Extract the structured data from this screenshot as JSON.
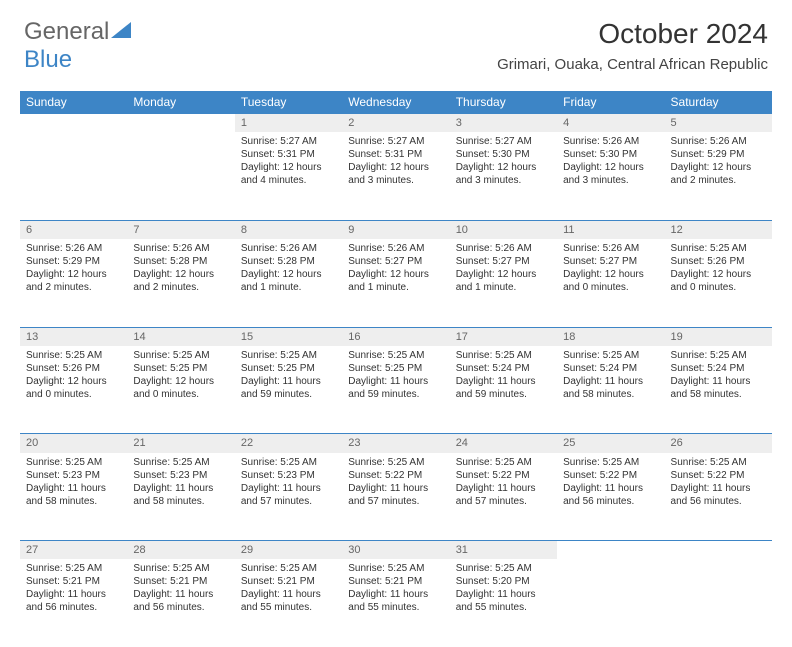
{
  "logo": {
    "text1": "General",
    "text2": "Blue"
  },
  "title": "October 2024",
  "location": "Grimari, Ouaka, Central African Republic",
  "colors": {
    "header_bg": "#3d85c6",
    "header_text": "#ffffff",
    "daynum_bg": "#eeeeee",
    "daynum_text": "#666666",
    "border": "#3d85c6",
    "body_text": "#333333"
  },
  "weekdays": [
    "Sunday",
    "Monday",
    "Tuesday",
    "Wednesday",
    "Thursday",
    "Friday",
    "Saturday"
  ],
  "weeks": [
    {
      "days": [
        {
          "n": "",
          "sunrise": "",
          "sunset": "",
          "daylight1": "",
          "daylight2": ""
        },
        {
          "n": "",
          "sunrise": "",
          "sunset": "",
          "daylight1": "",
          "daylight2": ""
        },
        {
          "n": "1",
          "sunrise": "Sunrise: 5:27 AM",
          "sunset": "Sunset: 5:31 PM",
          "daylight1": "Daylight: 12 hours",
          "daylight2": "and 4 minutes."
        },
        {
          "n": "2",
          "sunrise": "Sunrise: 5:27 AM",
          "sunset": "Sunset: 5:31 PM",
          "daylight1": "Daylight: 12 hours",
          "daylight2": "and 3 minutes."
        },
        {
          "n": "3",
          "sunrise": "Sunrise: 5:27 AM",
          "sunset": "Sunset: 5:30 PM",
          "daylight1": "Daylight: 12 hours",
          "daylight2": "and 3 minutes."
        },
        {
          "n": "4",
          "sunrise": "Sunrise: 5:26 AM",
          "sunset": "Sunset: 5:30 PM",
          "daylight1": "Daylight: 12 hours",
          "daylight2": "and 3 minutes."
        },
        {
          "n": "5",
          "sunrise": "Sunrise: 5:26 AM",
          "sunset": "Sunset: 5:29 PM",
          "daylight1": "Daylight: 12 hours",
          "daylight2": "and 2 minutes."
        }
      ]
    },
    {
      "days": [
        {
          "n": "6",
          "sunrise": "Sunrise: 5:26 AM",
          "sunset": "Sunset: 5:29 PM",
          "daylight1": "Daylight: 12 hours",
          "daylight2": "and 2 minutes."
        },
        {
          "n": "7",
          "sunrise": "Sunrise: 5:26 AM",
          "sunset": "Sunset: 5:28 PM",
          "daylight1": "Daylight: 12 hours",
          "daylight2": "and 2 minutes."
        },
        {
          "n": "8",
          "sunrise": "Sunrise: 5:26 AM",
          "sunset": "Sunset: 5:28 PM",
          "daylight1": "Daylight: 12 hours",
          "daylight2": "and 1 minute."
        },
        {
          "n": "9",
          "sunrise": "Sunrise: 5:26 AM",
          "sunset": "Sunset: 5:27 PM",
          "daylight1": "Daylight: 12 hours",
          "daylight2": "and 1 minute."
        },
        {
          "n": "10",
          "sunrise": "Sunrise: 5:26 AM",
          "sunset": "Sunset: 5:27 PM",
          "daylight1": "Daylight: 12 hours",
          "daylight2": "and 1 minute."
        },
        {
          "n": "11",
          "sunrise": "Sunrise: 5:26 AM",
          "sunset": "Sunset: 5:27 PM",
          "daylight1": "Daylight: 12 hours",
          "daylight2": "and 0 minutes."
        },
        {
          "n": "12",
          "sunrise": "Sunrise: 5:25 AM",
          "sunset": "Sunset: 5:26 PM",
          "daylight1": "Daylight: 12 hours",
          "daylight2": "and 0 minutes."
        }
      ]
    },
    {
      "days": [
        {
          "n": "13",
          "sunrise": "Sunrise: 5:25 AM",
          "sunset": "Sunset: 5:26 PM",
          "daylight1": "Daylight: 12 hours",
          "daylight2": "and 0 minutes."
        },
        {
          "n": "14",
          "sunrise": "Sunrise: 5:25 AM",
          "sunset": "Sunset: 5:25 PM",
          "daylight1": "Daylight: 12 hours",
          "daylight2": "and 0 minutes."
        },
        {
          "n": "15",
          "sunrise": "Sunrise: 5:25 AM",
          "sunset": "Sunset: 5:25 PM",
          "daylight1": "Daylight: 11 hours",
          "daylight2": "and 59 minutes."
        },
        {
          "n": "16",
          "sunrise": "Sunrise: 5:25 AM",
          "sunset": "Sunset: 5:25 PM",
          "daylight1": "Daylight: 11 hours",
          "daylight2": "and 59 minutes."
        },
        {
          "n": "17",
          "sunrise": "Sunrise: 5:25 AM",
          "sunset": "Sunset: 5:24 PM",
          "daylight1": "Daylight: 11 hours",
          "daylight2": "and 59 minutes."
        },
        {
          "n": "18",
          "sunrise": "Sunrise: 5:25 AM",
          "sunset": "Sunset: 5:24 PM",
          "daylight1": "Daylight: 11 hours",
          "daylight2": "and 58 minutes."
        },
        {
          "n": "19",
          "sunrise": "Sunrise: 5:25 AM",
          "sunset": "Sunset: 5:24 PM",
          "daylight1": "Daylight: 11 hours",
          "daylight2": "and 58 minutes."
        }
      ]
    },
    {
      "days": [
        {
          "n": "20",
          "sunrise": "Sunrise: 5:25 AM",
          "sunset": "Sunset: 5:23 PM",
          "daylight1": "Daylight: 11 hours",
          "daylight2": "and 58 minutes."
        },
        {
          "n": "21",
          "sunrise": "Sunrise: 5:25 AM",
          "sunset": "Sunset: 5:23 PM",
          "daylight1": "Daylight: 11 hours",
          "daylight2": "and 58 minutes."
        },
        {
          "n": "22",
          "sunrise": "Sunrise: 5:25 AM",
          "sunset": "Sunset: 5:23 PM",
          "daylight1": "Daylight: 11 hours",
          "daylight2": "and 57 minutes."
        },
        {
          "n": "23",
          "sunrise": "Sunrise: 5:25 AM",
          "sunset": "Sunset: 5:22 PM",
          "daylight1": "Daylight: 11 hours",
          "daylight2": "and 57 minutes."
        },
        {
          "n": "24",
          "sunrise": "Sunrise: 5:25 AM",
          "sunset": "Sunset: 5:22 PM",
          "daylight1": "Daylight: 11 hours",
          "daylight2": "and 57 minutes."
        },
        {
          "n": "25",
          "sunrise": "Sunrise: 5:25 AM",
          "sunset": "Sunset: 5:22 PM",
          "daylight1": "Daylight: 11 hours",
          "daylight2": "and 56 minutes."
        },
        {
          "n": "26",
          "sunrise": "Sunrise: 5:25 AM",
          "sunset": "Sunset: 5:22 PM",
          "daylight1": "Daylight: 11 hours",
          "daylight2": "and 56 minutes."
        }
      ]
    },
    {
      "days": [
        {
          "n": "27",
          "sunrise": "Sunrise: 5:25 AM",
          "sunset": "Sunset: 5:21 PM",
          "daylight1": "Daylight: 11 hours",
          "daylight2": "and 56 minutes."
        },
        {
          "n": "28",
          "sunrise": "Sunrise: 5:25 AM",
          "sunset": "Sunset: 5:21 PM",
          "daylight1": "Daylight: 11 hours",
          "daylight2": "and 56 minutes."
        },
        {
          "n": "29",
          "sunrise": "Sunrise: 5:25 AM",
          "sunset": "Sunset: 5:21 PM",
          "daylight1": "Daylight: 11 hours",
          "daylight2": "and 55 minutes."
        },
        {
          "n": "30",
          "sunrise": "Sunrise: 5:25 AM",
          "sunset": "Sunset: 5:21 PM",
          "daylight1": "Daylight: 11 hours",
          "daylight2": "and 55 minutes."
        },
        {
          "n": "31",
          "sunrise": "Sunrise: 5:25 AM",
          "sunset": "Sunset: 5:20 PM",
          "daylight1": "Daylight: 11 hours",
          "daylight2": "and 55 minutes."
        },
        {
          "n": "",
          "sunrise": "",
          "sunset": "",
          "daylight1": "",
          "daylight2": ""
        },
        {
          "n": "",
          "sunrise": "",
          "sunset": "",
          "daylight1": "",
          "daylight2": ""
        }
      ]
    }
  ]
}
